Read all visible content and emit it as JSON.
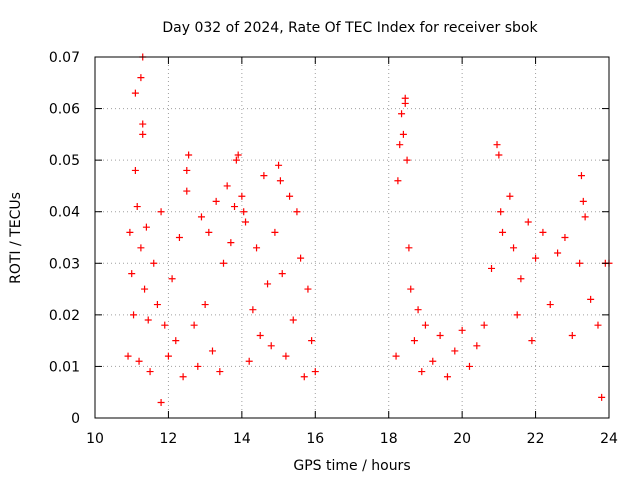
{
  "chart_data": {
    "type": "scatter",
    "title": "Day 032 of 2024, Rate Of TEC Index for receiver sbok",
    "xlabel": "GPS time / hours",
    "ylabel": "ROTI / TECUs",
    "xlim": [
      10,
      24
    ],
    "ylim": [
      0,
      0.07
    ],
    "xticks": [
      10,
      12,
      14,
      16,
      18,
      20,
      22,
      24
    ],
    "xtick_labels": [
      "10",
      "12",
      "14",
      "16",
      "18",
      "20",
      "22",
      "24"
    ],
    "yticks": [
      0,
      0.01,
      0.02,
      0.03,
      0.04,
      0.05,
      0.06,
      0.07
    ],
    "ytick_labels": [
      "0",
      "0.01",
      "0.02",
      "0.03",
      "0.04",
      "0.05",
      "0.06",
      "0.07"
    ],
    "grid": true,
    "marker": "+",
    "series": [
      {
        "name": "ROTI",
        "color": "#ff0000",
        "points": [
          [
            10.9,
            0.012
          ],
          [
            10.95,
            0.036
          ],
          [
            11.0,
            0.028
          ],
          [
            11.05,
            0.02
          ],
          [
            11.1,
            0.063
          ],
          [
            11.1,
            0.048
          ],
          [
            11.15,
            0.041
          ],
          [
            11.2,
            0.011
          ],
          [
            11.25,
            0.033
          ],
          [
            11.25,
            0.066
          ],
          [
            11.3,
            0.07
          ],
          [
            11.3,
            0.055
          ],
          [
            11.3,
            0.057
          ],
          [
            11.35,
            0.025
          ],
          [
            11.4,
            0.037
          ],
          [
            11.45,
            0.019
          ],
          [
            11.5,
            0.009
          ],
          [
            11.6,
            0.03
          ],
          [
            11.7,
            0.022
          ],
          [
            11.8,
            0.04
          ],
          [
            11.8,
            0.003
          ],
          [
            11.9,
            0.018
          ],
          [
            12.0,
            0.012
          ],
          [
            12.1,
            0.027
          ],
          [
            12.2,
            0.015
          ],
          [
            12.3,
            0.035
          ],
          [
            12.4,
            0.008
          ],
          [
            12.5,
            0.044
          ],
          [
            12.5,
            0.048
          ],
          [
            12.55,
            0.051
          ],
          [
            12.7,
            0.018
          ],
          [
            12.8,
            0.01
          ],
          [
            12.9,
            0.039
          ],
          [
            13.0,
            0.022
          ],
          [
            13.1,
            0.036
          ],
          [
            13.2,
            0.013
          ],
          [
            13.3,
            0.042
          ],
          [
            13.4,
            0.009
          ],
          [
            13.5,
            0.03
          ],
          [
            13.6,
            0.045
          ],
          [
            13.7,
            0.034
          ],
          [
            13.8,
            0.041
          ],
          [
            13.85,
            0.05
          ],
          [
            13.9,
            0.051
          ],
          [
            14.0,
            0.043
          ],
          [
            14.05,
            0.04
          ],
          [
            14.1,
            0.038
          ],
          [
            14.2,
            0.011
          ],
          [
            14.3,
            0.021
          ],
          [
            14.4,
            0.033
          ],
          [
            14.5,
            0.016
          ],
          [
            14.6,
            0.047
          ],
          [
            14.7,
            0.026
          ],
          [
            14.8,
            0.014
          ],
          [
            14.9,
            0.036
          ],
          [
            15.0,
            0.049
          ],
          [
            15.05,
            0.046
          ],
          [
            15.1,
            0.028
          ],
          [
            15.2,
            0.012
          ],
          [
            15.3,
            0.043
          ],
          [
            15.4,
            0.019
          ],
          [
            15.5,
            0.04
          ],
          [
            15.6,
            0.031
          ],
          [
            15.7,
            0.008
          ],
          [
            15.8,
            0.025
          ],
          [
            15.9,
            0.015
          ],
          [
            16.0,
            0.009
          ],
          [
            18.2,
            0.012
          ],
          [
            18.25,
            0.046
          ],
          [
            18.3,
            0.053
          ],
          [
            18.35,
            0.059
          ],
          [
            18.4,
            0.055
          ],
          [
            18.45,
            0.061
          ],
          [
            18.45,
            0.062
          ],
          [
            18.5,
            0.05
          ],
          [
            18.55,
            0.033
          ],
          [
            18.6,
            0.025
          ],
          [
            18.7,
            0.015
          ],
          [
            18.8,
            0.021
          ],
          [
            18.9,
            0.009
          ],
          [
            19.0,
            0.018
          ],
          [
            19.2,
            0.011
          ],
          [
            19.4,
            0.016
          ],
          [
            19.6,
            0.008
          ],
          [
            19.8,
            0.013
          ],
          [
            20.0,
            0.017
          ],
          [
            20.2,
            0.01
          ],
          [
            20.4,
            0.014
          ],
          [
            20.6,
            0.018
          ],
          [
            20.8,
            0.029
          ],
          [
            20.95,
            0.053
          ],
          [
            21.0,
            0.051
          ],
          [
            21.05,
            0.04
          ],
          [
            21.1,
            0.036
          ],
          [
            21.3,
            0.043
          ],
          [
            21.4,
            0.033
          ],
          [
            21.5,
            0.02
          ],
          [
            21.6,
            0.027
          ],
          [
            21.8,
            0.038
          ],
          [
            21.9,
            0.015
          ],
          [
            22.0,
            0.031
          ],
          [
            22.2,
            0.036
          ],
          [
            22.4,
            0.022
          ],
          [
            22.6,
            0.032
          ],
          [
            22.8,
            0.035
          ],
          [
            23.0,
            0.016
          ],
          [
            23.2,
            0.03
          ],
          [
            23.25,
            0.047
          ],
          [
            23.3,
            0.042
          ],
          [
            23.35,
            0.039
          ],
          [
            23.5,
            0.023
          ],
          [
            23.7,
            0.018
          ],
          [
            23.8,
            0.004
          ],
          [
            23.9,
            0.03
          ],
          [
            24.0,
            0.03
          ]
        ]
      }
    ]
  }
}
